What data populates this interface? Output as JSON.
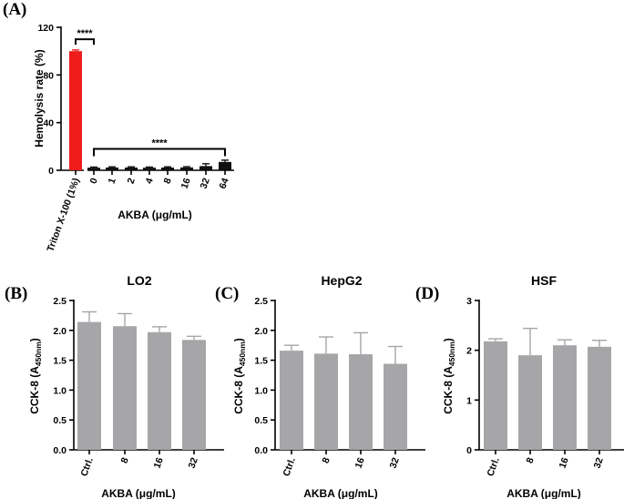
{
  "figure": {
    "panels": [
      {
        "letter": "(A)"
      },
      {
        "letter": "(B)"
      },
      {
        "letter": "(C)"
      },
      {
        "letter": "(D)"
      }
    ]
  },
  "chart_data": [
    {
      "panel": "(A)",
      "type": "bar",
      "title": "",
      "xlabel": "AKBA (μg/mL)",
      "ylabel": "Hemolysis rate (%)",
      "ylim": [
        0,
        120
      ],
      "yticks": [
        "0",
        "40",
        "80",
        "120"
      ],
      "categories": [
        "Triton X-100 (1%)",
        "0",
        "1",
        "2",
        "4",
        "8",
        "16",
        "32",
        "64"
      ],
      "values": [
        100,
        2.2,
        2.3,
        2.3,
        2.2,
        2.3,
        2.4,
        3.5,
        7.0
      ],
      "errors": [
        1.0,
        0.5,
        0.6,
        0.6,
        0.5,
        0.6,
        0.6,
        2.0,
        1.5
      ],
      "bar_colors": [
        "#ee1c1c",
        "#111111",
        "#111111",
        "#111111",
        "#111111",
        "#111111",
        "#111111",
        "#111111",
        "#111111"
      ],
      "annotations": [
        {
          "text": "****",
          "from": 0,
          "to": 1,
          "y": 110
        },
        {
          "text": "****",
          "from": 1,
          "to": 8,
          "y": 18
        }
      ],
      "grid": false
    },
    {
      "panel": "(B)",
      "type": "bar",
      "title": "LO2",
      "xlabel": "AKBA (μg/mL)",
      "ylabel": "CCK-8 (A450nm)",
      "ylabel_main": "CCK-8 (A",
      "ylabel_sub": "450nm",
      "ylabel_end": ")",
      "ylim": [
        0,
        2.5
      ],
      "yticks": [
        "0.0",
        "0.5",
        "1.0",
        "1.5",
        "2.0",
        "2.5"
      ],
      "categories": [
        "Ctrl.",
        "8",
        "16",
        "32"
      ],
      "values": [
        2.14,
        2.07,
        1.97,
        1.84
      ],
      "errors": [
        0.17,
        0.21,
        0.09,
        0.06
      ],
      "bar_color": "#a6a6a9",
      "grid": false
    },
    {
      "panel": "(C)",
      "type": "bar",
      "title": "HepG2",
      "xlabel": "AKBA (μg/mL)",
      "ylabel": "CCK-8 (A450nm)",
      "ylabel_main": "CCK-8 (A",
      "ylabel_sub": "450nm",
      "ylabel_end": ")",
      "ylim": [
        0,
        2.5
      ],
      "yticks": [
        "0.0",
        "0.5",
        "1.0",
        "1.5",
        "2.0",
        "2.5"
      ],
      "categories": [
        "Ctrl.",
        "8",
        "16",
        "32"
      ],
      "values": [
        1.66,
        1.61,
        1.6,
        1.44
      ],
      "errors": [
        0.09,
        0.28,
        0.36,
        0.29
      ],
      "bar_color": "#a6a6a9",
      "grid": false
    },
    {
      "panel": "(D)",
      "type": "bar",
      "title": "HSF",
      "xlabel": "AKBA (μg/mL)",
      "ylabel": "CCK-8 (A450nm)",
      "ylabel_main": "CCK-8 (A",
      "ylabel_sub": "450nm",
      "ylabel_end": ")",
      "ylim": [
        0,
        3
      ],
      "yticks": [
        "0",
        "1",
        "2",
        "3"
      ],
      "categories": [
        "Ctrl.",
        "8",
        "16",
        "32"
      ],
      "values": [
        2.18,
        1.9,
        2.1,
        2.07
      ],
      "errors": [
        0.05,
        0.54,
        0.11,
        0.13
      ],
      "bar_color": "#a6a6a9",
      "grid": false
    }
  ]
}
